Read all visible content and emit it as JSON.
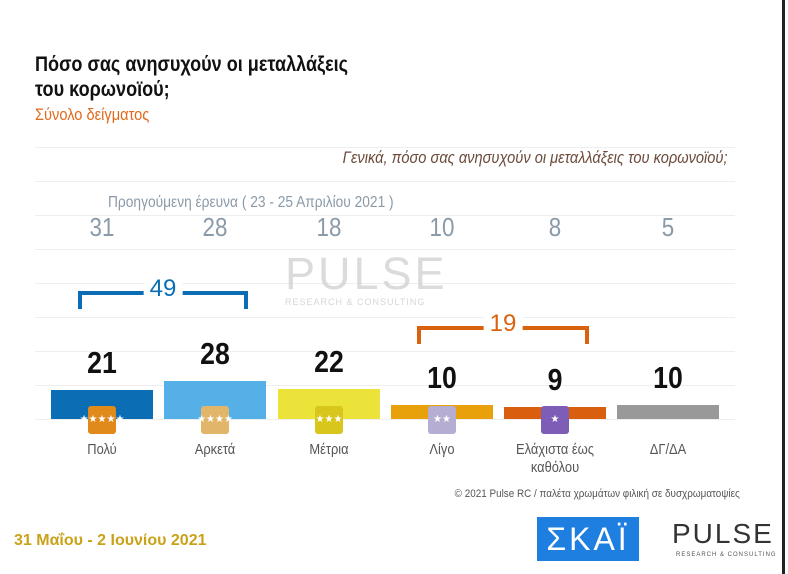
{
  "title_line1": "Πόσο σας ανησυχούν οι μεταλλάξεις",
  "title_line2": "του κορωνοϊού;",
  "subtitle": "Σύνολο δείγματος",
  "question": "Γενικά, πόσο σας ανησυχούν οι μεταλλάξεις του κορωνοϊού;",
  "chart_data": {
    "type": "bar",
    "categories": [
      "Πολύ",
      "Αρκετά",
      "Μέτρια",
      "Λίγο",
      "Ελάχιστα έως καθόλου",
      "ΔΓ/ΔΑ"
    ],
    "values": [
      21,
      28,
      22,
      10,
      9,
      10
    ],
    "colors": [
      "#0b6eb4",
      "#54b0e6",
      "#ece33a",
      "#e8a10a",
      "#d95f0e",
      "#999999"
    ],
    "badge_colors": [
      "#e08a1c",
      "#e2b66a",
      "#d9c61c",
      "#b5aed2",
      "#7d5db5"
    ],
    "badge_stars": [
      5,
      4,
      3,
      2,
      1
    ],
    "previous_label": "Προηγούμενη έρευνα  ( 23 - 25 Απριλίου 2021 )",
    "previous_values": [
      31,
      28,
      18,
      10,
      8,
      5
    ],
    "groups": [
      {
        "label": "49",
        "color": "#0b6eb4"
      },
      {
        "label": "19",
        "color": "#d9620e"
      }
    ]
  },
  "watermark": {
    "main": "PULSE",
    "sub": "RESEARCH & CONSULTING"
  },
  "copyright": "© 2021 Pulse RC  /  παλέτα χρωμάτων φιλική σε δυσχρωματοψίες",
  "date": "31 Μαΐου - 2 Ιουνίου 2021",
  "logos": {
    "skai": "ΣΚΑΪ",
    "pulse": "PULSE",
    "pulse_sub": "RESEARCH & CONSULTING"
  }
}
